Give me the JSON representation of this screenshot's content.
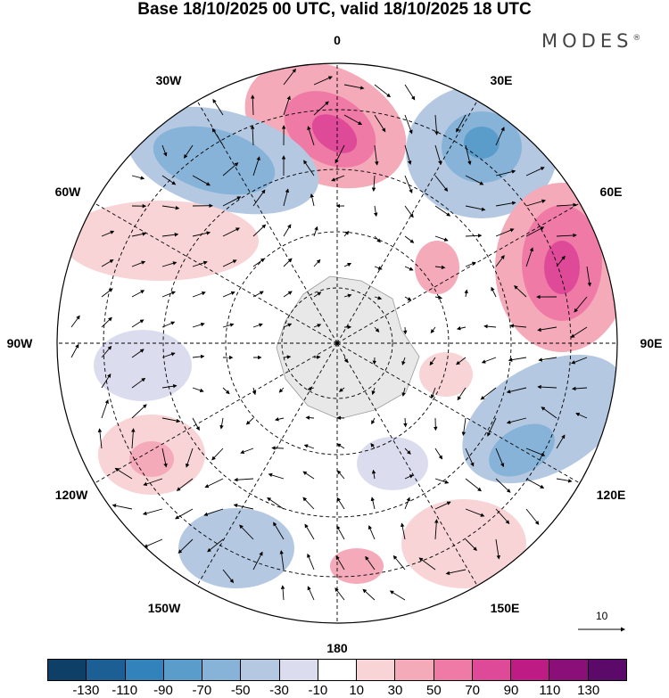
{
  "header": {
    "title": "Base 18/10/2025 00 UTC, valid 18/10/2025 18 UTC",
    "brand": "MODES",
    "brand_mark": "®"
  },
  "map": {
    "projection": "south polar stereographic",
    "longitude_labels": {
      "top": "0",
      "top_right": "30E",
      "right_upper": "60E",
      "right": "90E",
      "right_lower": "120E",
      "bottom_right": "150E",
      "bottom": "180",
      "bottom_left": "150W",
      "left_lower": "120W",
      "left": "90W",
      "left_upper": "60W",
      "top_left": "30W"
    },
    "vector_scale_label": "10"
  },
  "legend": {
    "colors": [
      "#0e3f66",
      "#1b5f94",
      "#3282bb",
      "#5a9cca",
      "#87b3d8",
      "#b4c8e2",
      "#dcdcef",
      "#ffffff",
      "#f8d4d6",
      "#f4aab8",
      "#ef7aa6",
      "#df4a98",
      "#bf1b85",
      "#8a0f78",
      "#5b0a6a"
    ],
    "tick_labels": [
      "-130",
      "-110",
      "-90",
      "-70",
      "-50",
      "-30",
      "-10",
      "10",
      "30",
      "50",
      "70",
      "90",
      "110",
      "130"
    ]
  }
}
